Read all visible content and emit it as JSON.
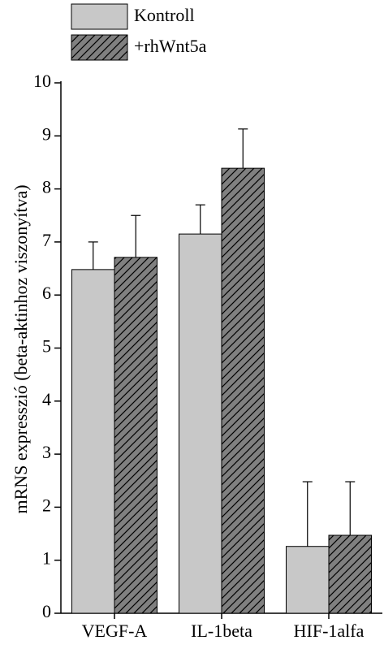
{
  "chart_data": {
    "type": "bar",
    "y_label": "mRNS expresszió (beta-aktinhoz viszonyítva)",
    "categories": [
      "VEGF-A",
      "IL-1beta",
      "HIF-1alfa"
    ],
    "series": [
      {
        "name": "Kontroll",
        "color": "#c8c8c8",
        "values": [
          6.48,
          7.15,
          1.26
        ],
        "errors": [
          0.52,
          0.55,
          1.22
        ]
      },
      {
        "name": "+rhWnt5a",
        "color": "#808080",
        "hatch": true,
        "values": [
          6.71,
          8.39,
          1.47
        ],
        "errors": [
          0.79,
          0.74,
          1.01
        ]
      }
    ],
    "ylim": [
      0,
      10
    ],
    "yticks": [
      0,
      1,
      2,
      3,
      4,
      5,
      6,
      7,
      8,
      9,
      10
    ],
    "legend": "top-left"
  }
}
